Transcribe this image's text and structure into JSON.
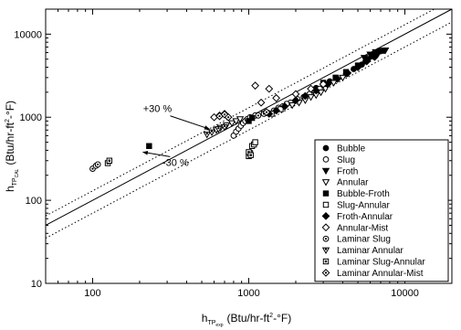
{
  "chart_data": {
    "type": "scatter",
    "x_scale": "log",
    "y_scale": "log",
    "xlim": [
      50,
      20000
    ],
    "ylim": [
      10,
      20000
    ],
    "x_ticks": [
      100,
      1000,
      10000
    ],
    "y_ticks": [
      10,
      100,
      1000,
      10000
    ],
    "x_tick_labels": [
      "100",
      "1000",
      "10000"
    ],
    "y_tick_labels": [
      "10",
      "100",
      "1000",
      "10000"
    ],
    "xlabel": {
      "main": "h",
      "sub": "TP",
      "subsub": "exp",
      "unit": "(Btu/hr-ft",
      "sup": "2",
      "unit_end": "-°F)"
    },
    "ylabel": {
      "main": "h",
      "sub": "TP",
      "subsub": "CAL",
      "unit": "(Btu/hr-ft",
      "sup": "2",
      "unit_end": "-°F)"
    },
    "grid": false,
    "legend_position": "bottom-right",
    "annotations": [
      {
        "text": "+30 %",
        "x": 260,
        "y": 1150,
        "arrow_to": [
          560,
          720
        ]
      },
      {
        "text": "-30 %",
        "x": 340,
        "y": 260,
        "arrow_to": [
          210,
          380
        ]
      }
    ],
    "lines": [
      {
        "name": "y = x",
        "style": "solid",
        "factor": 1.0
      },
      {
        "name": "+30 %",
        "style": "dotted",
        "factor": 1.3
      },
      {
        "name": "-30 %",
        "style": "dotted",
        "factor": 0.7
      }
    ],
    "series": [
      {
        "name": "Bubble",
        "marker": "circle-filled",
        "points": [
          [
            2700,
            2250
          ],
          [
            3300,
            2700
          ],
          [
            4200,
            3300
          ],
          [
            5000,
            4100
          ],
          [
            5600,
            4700
          ],
          [
            6100,
            5400
          ],
          [
            6600,
            5900
          ],
          [
            7000,
            6300
          ],
          [
            5300,
            4300
          ],
          [
            4700,
            3800
          ]
        ]
      },
      {
        "name": "Slug",
        "marker": "circle-open",
        "points": [
          [
            800,
            600
          ],
          [
            830,
            670
          ],
          [
            860,
            730
          ],
          [
            890,
            790
          ],
          [
            920,
            850
          ],
          [
            950,
            900
          ],
          [
            980,
            950
          ],
          [
            1020,
            1000
          ],
          [
            1100,
            1050
          ],
          [
            1250,
            1150
          ],
          [
            1450,
            1200
          ],
          [
            1650,
            1350
          ],
          [
            1850,
            1500
          ],
          [
            2050,
            1650
          ],
          [
            2250,
            1750
          ],
          [
            2450,
            1900
          ],
          [
            2650,
            2050
          ],
          [
            2850,
            2200
          ],
          [
            1550,
            1300
          ],
          [
            1750,
            1450
          ]
        ]
      },
      {
        "name": "Froth",
        "marker": "triangle-down-filled",
        "points": [
          [
            5500,
            5200
          ],
          [
            6000,
            5700
          ],
          [
            6500,
            6100
          ],
          [
            7000,
            6300
          ],
          [
            7500,
            6400
          ],
          [
            6800,
            6000
          ],
          [
            6200,
            5500
          ]
        ]
      },
      {
        "name": "Annular",
        "marker": "triangle-down-open",
        "points": [
          [
            620,
            700
          ],
          [
            660,
            750
          ],
          [
            720,
            800
          ],
          [
            780,
            850
          ],
          [
            830,
            900
          ],
          [
            880,
            950
          ],
          [
            1900,
            1400
          ],
          [
            2100,
            1500
          ],
          [
            2300,
            1600
          ],
          [
            2500,
            1750
          ],
          [
            2700,
            1850
          ],
          [
            2900,
            2000
          ],
          [
            3100,
            2200
          ],
          [
            3500,
            2600
          ],
          [
            4000,
            3000
          ]
        ]
      },
      {
        "name": "Bubble-Froth",
        "marker": "square-filled",
        "points": [
          [
            230,
            450
          ],
          [
            1000,
            900
          ],
          [
            1050,
            980
          ],
          [
            3000,
            2600
          ],
          [
            3600,
            3000
          ],
          [
            4200,
            3500
          ],
          [
            5000,
            4200
          ],
          [
            5800,
            5000
          ],
          [
            6500,
            5800
          ],
          [
            7200,
            6300
          ]
        ]
      },
      {
        "name": "Slug-Annular",
        "marker": "square-open",
        "points": [
          [
            1000,
            340
          ],
          [
            1020,
            370
          ],
          [
            1050,
            450
          ],
          [
            1080,
            470
          ],
          [
            1100,
            500
          ],
          [
            1400,
            1100
          ],
          [
            1600,
            1250
          ]
        ]
      },
      {
        "name": "Froth-Annular",
        "marker": "diamond-filled",
        "points": [
          [
            1350,
            1100
          ],
          [
            1500,
            1200
          ],
          [
            1700,
            1350
          ],
          [
            2000,
            1600
          ],
          [
            2300,
            1800
          ],
          [
            2700,
            2100
          ],
          [
            3200,
            2500
          ],
          [
            3700,
            2900
          ],
          [
            4300,
            3400
          ],
          [
            5000,
            4000
          ],
          [
            5700,
            4700
          ],
          [
            6400,
            5300
          ]
        ]
      },
      {
        "name": "Annular-Mist",
        "marker": "diamond-open",
        "points": [
          [
            600,
            1000
          ],
          [
            650,
            1050
          ],
          [
            700,
            1100
          ],
          [
            1100,
            2400
          ],
          [
            1350,
            2200
          ],
          [
            1200,
            1500
          ],
          [
            1500,
            1700
          ],
          [
            2000,
            1900
          ],
          [
            2500,
            2200
          ],
          [
            3000,
            2500
          ]
        ]
      },
      {
        "name": "Laminar Slug",
        "marker": "circle-center",
        "points": [
          [
            100,
            240
          ],
          [
            105,
            260
          ],
          [
            108,
            270
          ],
          [
            1150,
            1050
          ],
          [
            1250,
            1100
          ]
        ]
      },
      {
        "name": "Laminar Annular",
        "marker": "triangle-center",
        "points": [
          [
            540,
            620
          ],
          [
            580,
            660
          ],
          [
            640,
            720
          ],
          [
            700,
            760
          ]
        ]
      },
      {
        "name": "Laminar Slug-Annular",
        "marker": "square-center",
        "points": [
          [
            125,
            280
          ],
          [
            128,
            300
          ],
          [
            1000,
            380
          ],
          [
            1030,
            350
          ]
        ]
      },
      {
        "name": "Laminar Annular-Mist",
        "marker": "diamond-center",
        "points": [
          [
            650,
            1030
          ],
          [
            700,
            1080
          ],
          [
            740,
            1000
          ],
          [
            1300,
            1150
          ]
        ]
      }
    ]
  }
}
